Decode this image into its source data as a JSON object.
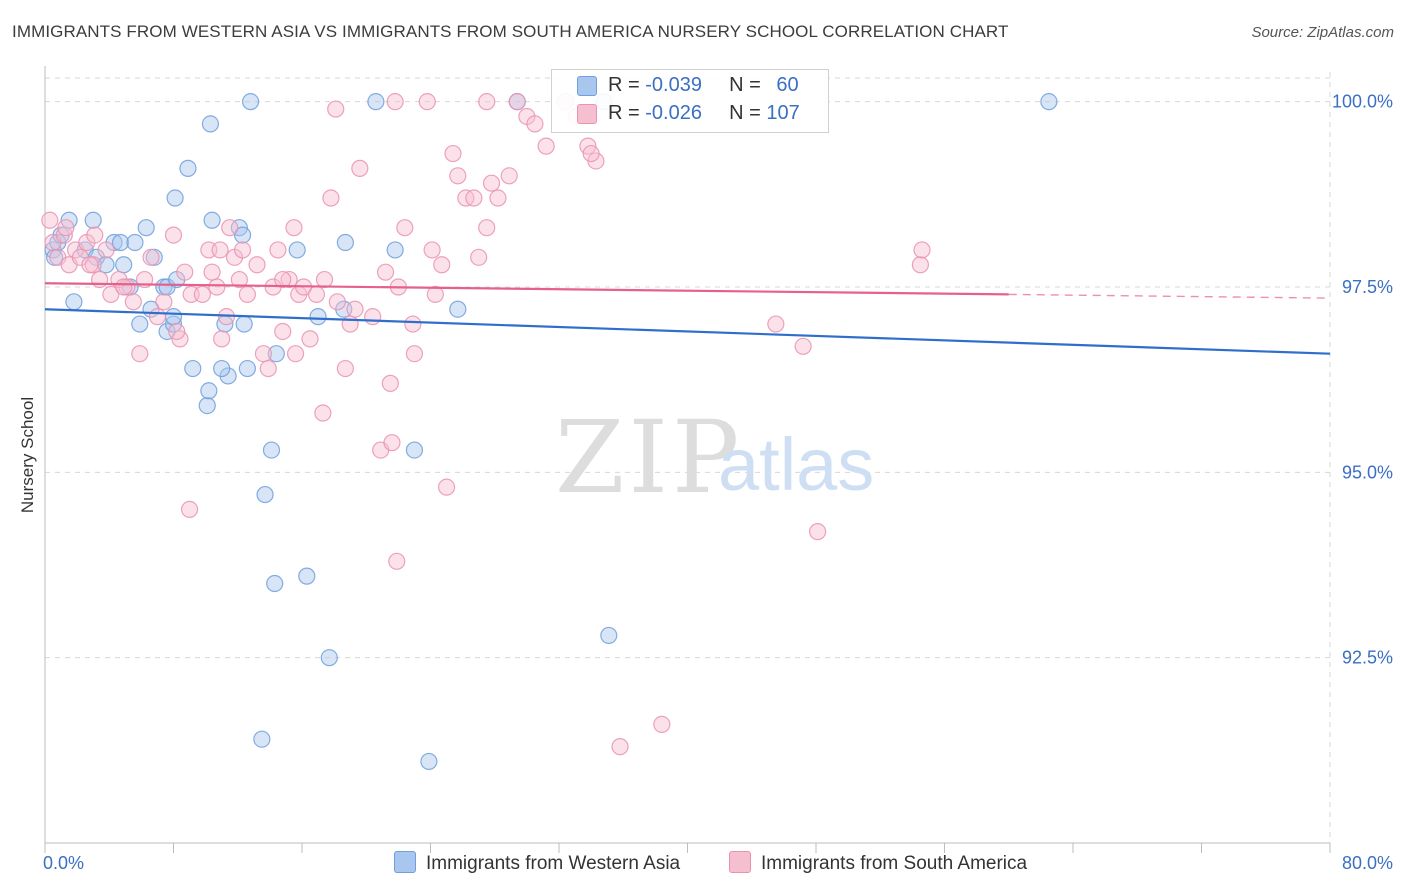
{
  "title": "IMMIGRANTS FROM WESTERN ASIA VS IMMIGRANTS FROM SOUTH AMERICA NURSERY SCHOOL CORRELATION CHART",
  "source": "Source: ZipAtlas.com",
  "watermark": {
    "zip": "ZIP",
    "atlas": "atlas"
  },
  "colors": {
    "blue_fill": "#a9c6ee",
    "blue_stroke": "#6f9fdc",
    "blue_line": "#2f6fcb",
    "pink_fill": "#f6bfd0",
    "pink_stroke": "#ea92b0",
    "pink_line": "#e5608d",
    "tick_label": "#3a6fc4",
    "grid": "#d7d7d7"
  },
  "legend_top": [
    {
      "r_label": "R = ",
      "r_value": "-0.039",
      "n_label": "N = ",
      "n_value": "60"
    },
    {
      "r_label": "R = ",
      "r_value": "-0.026",
      "n_label": "N = ",
      "n_value": "107"
    }
  ],
  "bottom_legend": [
    "Immigrants from Western Asia",
    "Immigrants from South America"
  ],
  "chart_data": {
    "type": "scatter",
    "title": "IMMIGRANTS FROM WESTERN ASIA VS IMMIGRANTS FROM SOUTH AMERICA NURSERY SCHOOL CORRELATION CHART",
    "xlabel": "",
    "ylabel": "Nursery School",
    "xlim": [
      0,
      80
    ],
    "ylim": [
      90.0,
      100.4
    ],
    "x_tick_labels": [
      "0.0%",
      "80.0%"
    ],
    "y_ticks": [
      92.5,
      95.0,
      97.5,
      100.0
    ],
    "y_tick_labels": [
      "92.5%",
      "95.0%",
      "97.5%",
      "100.0%"
    ],
    "grid": true,
    "legend_position": "top-center",
    "series": [
      {
        "name": "Immigrants from Western Asia",
        "color": "#a9c6ee",
        "trend": {
          "x": [
            0,
            80
          ],
          "y": [
            97.2,
            96.6
          ],
          "dashed_from": null
        },
        "points": [
          [
            0.5,
            98.0
          ],
          [
            0.6,
            97.9
          ],
          [
            0.8,
            98.1
          ],
          [
            1.0,
            98.2
          ],
          [
            1.5,
            98.4
          ],
          [
            1.8,
            97.3
          ],
          [
            2.5,
            98.0
          ],
          [
            3.0,
            98.4
          ],
          [
            3.2,
            97.9
          ],
          [
            3.8,
            97.8
          ],
          [
            4.3,
            98.1
          ],
          [
            4.7,
            98.1
          ],
          [
            5.3,
            97.5
          ],
          [
            5.6,
            98.1
          ],
          [
            4.9,
            97.8
          ],
          [
            6.3,
            98.3
          ],
          [
            6.6,
            97.2
          ],
          [
            5.9,
            97.0
          ],
          [
            6.8,
            97.9
          ],
          [
            7.4,
            97.5
          ],
          [
            7.6,
            96.9
          ],
          [
            8.0,
            97.0
          ],
          [
            8.0,
            97.1
          ],
          [
            7.6,
            97.5
          ],
          [
            8.2,
            97.6
          ],
          [
            8.9,
            99.1
          ],
          [
            8.1,
            98.7
          ],
          [
            9.2,
            96.4
          ],
          [
            10.1,
            95.9
          ],
          [
            10.3,
            99.7
          ],
          [
            10.2,
            96.1
          ],
          [
            10.4,
            98.4
          ],
          [
            11.2,
            97.0
          ],
          [
            11.4,
            96.3
          ],
          [
            11.0,
            96.4
          ],
          [
            12.1,
            98.3
          ],
          [
            12.3,
            98.2
          ],
          [
            12.4,
            97.0
          ],
          [
            12.6,
            96.4
          ],
          [
            12.8,
            100.0
          ],
          [
            14.1,
            95.3
          ],
          [
            13.7,
            94.7
          ],
          [
            14.3,
            93.5
          ],
          [
            14.4,
            96.6
          ],
          [
            15.7,
            98.0
          ],
          [
            16.3,
            93.6
          ],
          [
            13.5,
            91.4
          ],
          [
            17.7,
            92.5
          ],
          [
            18.7,
            98.1
          ],
          [
            18.6,
            97.2
          ],
          [
            20.6,
            100.0
          ],
          [
            21.8,
            98.0
          ],
          [
            23.0,
            95.3
          ],
          [
            23.9,
            91.1
          ],
          [
            25.7,
            97.2
          ],
          [
            29.4,
            100.0
          ],
          [
            34.8,
            100.0
          ],
          [
            35.1,
            92.8
          ],
          [
            62.5,
            100.0
          ],
          [
            17.0,
            97.1
          ]
        ]
      },
      {
        "name": "Immigrants from South America",
        "color": "#f6bfd0",
        "trend": {
          "x": [
            0,
            80
          ],
          "y": [
            97.55,
            97.35
          ],
          "dashed_from": 60
        },
        "points": [
          [
            0.3,
            98.4
          ],
          [
            0.5,
            98.1
          ],
          [
            0.8,
            97.9
          ],
          [
            1.2,
            98.2
          ],
          [
            1.5,
            97.8
          ],
          [
            1.9,
            98.0
          ],
          [
            2.2,
            97.9
          ],
          [
            2.6,
            98.1
          ],
          [
            3.0,
            97.8
          ],
          [
            3.4,
            97.6
          ],
          [
            3.8,
            98.0
          ],
          [
            4.1,
            97.4
          ],
          [
            4.6,
            97.6
          ],
          [
            5.1,
            97.5
          ],
          [
            5.5,
            97.3
          ],
          [
            5.9,
            96.6
          ],
          [
            6.2,
            97.6
          ],
          [
            6.6,
            97.9
          ],
          [
            7.0,
            97.1
          ],
          [
            7.4,
            97.3
          ],
          [
            8.0,
            98.2
          ],
          [
            8.4,
            96.8
          ],
          [
            8.7,
            97.7
          ],
          [
            9.1,
            97.4
          ],
          [
            9.0,
            94.5
          ],
          [
            9.8,
            97.4
          ],
          [
            10.2,
            98.0
          ],
          [
            10.4,
            97.7
          ],
          [
            10.7,
            97.5
          ],
          [
            11.0,
            96.8
          ],
          [
            11.3,
            97.1
          ],
          [
            11.5,
            98.3
          ],
          [
            11.8,
            97.9
          ],
          [
            12.1,
            97.6
          ],
          [
            12.3,
            98.0
          ],
          [
            12.6,
            97.4
          ],
          [
            13.2,
            97.8
          ],
          [
            13.6,
            96.6
          ],
          [
            13.9,
            96.4
          ],
          [
            14.2,
            97.5
          ],
          [
            14.5,
            98.0
          ],
          [
            14.8,
            96.9
          ],
          [
            15.2,
            97.6
          ],
          [
            15.5,
            98.3
          ],
          [
            15.8,
            97.4
          ],
          [
            16.1,
            97.5
          ],
          [
            16.5,
            96.8
          ],
          [
            16.9,
            97.4
          ],
          [
            17.3,
            95.8
          ],
          [
            17.4,
            97.6
          ],
          [
            17.8,
            98.7
          ],
          [
            18.1,
            99.9
          ],
          [
            18.2,
            97.3
          ],
          [
            18.7,
            96.4
          ],
          [
            19.0,
            97.0
          ],
          [
            19.3,
            97.2
          ],
          [
            19.6,
            99.1
          ],
          [
            20.4,
            97.1
          ],
          [
            20.9,
            95.3
          ],
          [
            21.2,
            97.7
          ],
          [
            21.5,
            96.2
          ],
          [
            22.0,
            97.5
          ],
          [
            22.4,
            98.3
          ],
          [
            22.9,
            97.0
          ],
          [
            23.0,
            96.6
          ],
          [
            21.6,
            95.4
          ],
          [
            21.9,
            93.8
          ],
          [
            24.1,
            98.0
          ],
          [
            24.3,
            97.4
          ],
          [
            24.7,
            97.8
          ],
          [
            25.4,
            99.3
          ],
          [
            25.7,
            99.0
          ],
          [
            26.2,
            98.7
          ],
          [
            26.7,
            98.7
          ],
          [
            27.0,
            97.9
          ],
          [
            27.5,
            98.3
          ],
          [
            27.8,
            98.9
          ],
          [
            28.2,
            98.7
          ],
          [
            28.9,
            99.0
          ],
          [
            30.0,
            99.8
          ],
          [
            31.2,
            99.4
          ],
          [
            32.4,
            100.0
          ],
          [
            33.1,
            99.8
          ],
          [
            33.8,
            99.4
          ],
          [
            34.3,
            99.2
          ],
          [
            27.5,
            100.0
          ],
          [
            23.8,
            100.0
          ],
          [
            21.8,
            100.0
          ],
          [
            30.5,
            99.7
          ],
          [
            34.0,
            99.3
          ],
          [
            29.4,
            100.0
          ],
          [
            25.0,
            94.8
          ],
          [
            35.8,
            91.3
          ],
          [
            38.4,
            91.6
          ],
          [
            45.5,
            97.0
          ],
          [
            47.2,
            96.7
          ],
          [
            48.1,
            94.2
          ],
          [
            54.5,
            97.8
          ],
          [
            54.6,
            98.0
          ],
          [
            15.6,
            96.6
          ],
          [
            14.8,
            97.6
          ],
          [
            10.9,
            98.0
          ],
          [
            8.2,
            96.9
          ],
          [
            4.9,
            97.5
          ],
          [
            2.8,
            97.8
          ],
          [
            3.1,
            98.2
          ],
          [
            1.3,
            98.3
          ]
        ]
      }
    ]
  }
}
